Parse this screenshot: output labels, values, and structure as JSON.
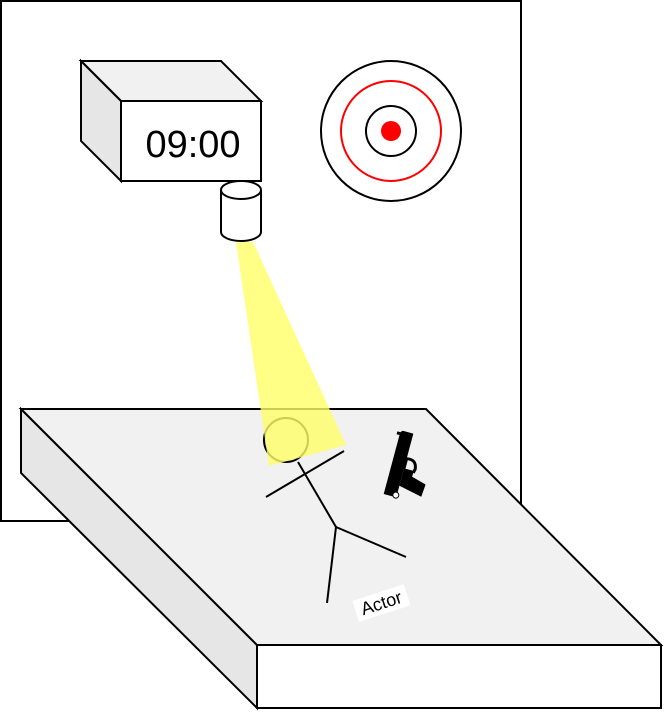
{
  "clock": {
    "time": "09:00"
  },
  "actor": {
    "label": "Actor"
  },
  "icons": {
    "camera": "camera-icon",
    "target": "target-icon",
    "weapon": "pistol-icon",
    "person": "stick-figure-icon"
  },
  "colors": {
    "line": "#000000",
    "floor_top": "#f1f1f1",
    "floor_side": "#e6e6e6",
    "spotlight": "#ffff66",
    "target_ring": "#ff0000",
    "target_dot": "#ff0000"
  }
}
